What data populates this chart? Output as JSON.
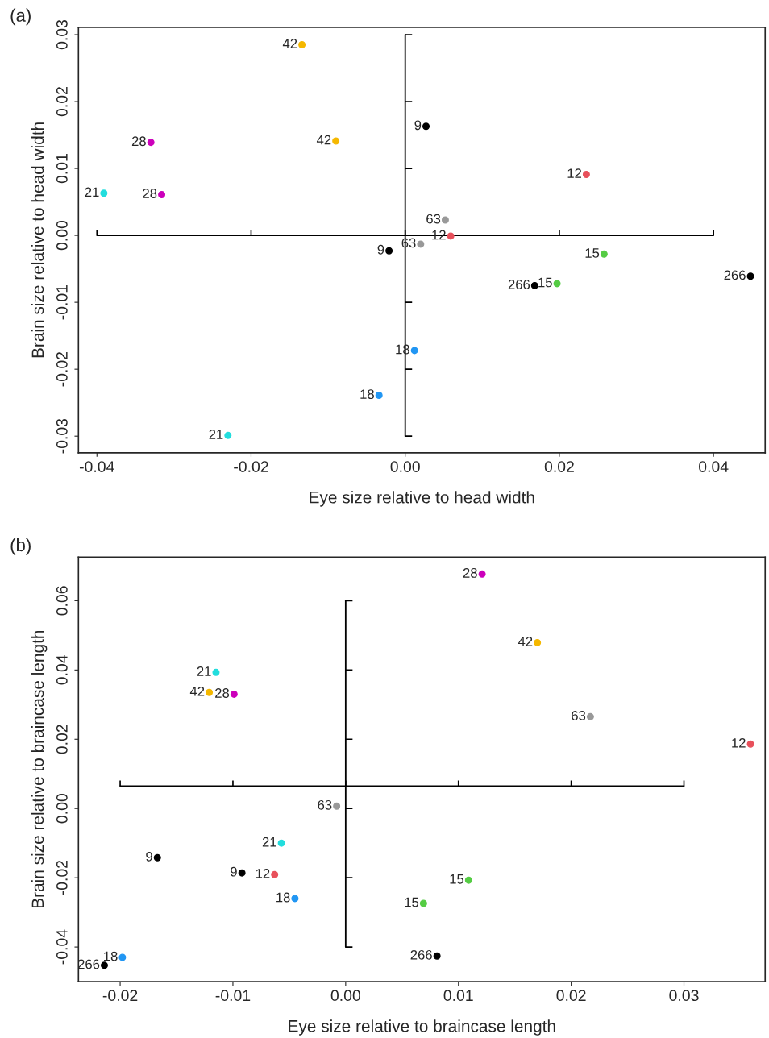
{
  "chart_data": [
    {
      "type": "scatter",
      "title": "(a)",
      "xlabel": "Eye size relative to head width",
      "ylabel": "Brain size relative to head width",
      "xlim": [
        -0.0424,
        0.0467
      ],
      "ylim": [
        -0.0325,
        0.0311
      ],
      "xticks": [
        {
          "value": -0.04,
          "label": "-0.04"
        },
        {
          "value": -0.02,
          "label": "-0.02"
        },
        {
          "value": 0.0,
          "label": "0.00"
        },
        {
          "value": 0.02,
          "label": "0.02"
        },
        {
          "value": 0.04,
          "label": "0.04"
        }
      ],
      "yticks": [
        {
          "value": -0.03,
          "label": "-0.03"
        },
        {
          "value": -0.02,
          "label": "-0.02"
        },
        {
          "value": -0.01,
          "label": "-0.01"
        },
        {
          "value": 0.0,
          "label": "0.00"
        },
        {
          "value": 0.01,
          "label": "0.01"
        },
        {
          "value": 0.02,
          "label": "0.02"
        },
        {
          "value": 0.03,
          "label": "0.03"
        }
      ],
      "ref_lines": [
        {
          "axis": "x",
          "value": 0.0
        },
        {
          "axis": "y",
          "value": 0.0
        }
      ],
      "grid": false,
      "marker": "circle",
      "series": [
        {
          "color": "#000000",
          "x": [
            0.0027,
            -0.0021
          ],
          "values": [
            0.0163,
            -0.0023
          ]
        },
        {
          "color": "#e8505b",
          "x": [
            0.0235,
            0.0059
          ],
          "values": [
            0.0091,
            -0.0001
          ]
        },
        {
          "color": "#55cc44",
          "x": [
            0.0258,
            0.0197
          ],
          "values": [
            -0.0028,
            -0.0072
          ]
        },
        {
          "color": "#2196f3",
          "x": [
            0.0012,
            -0.0034
          ],
          "values": [
            -0.0172,
            -0.0239
          ]
        },
        {
          "color": "#22dddd",
          "x": [
            -0.0391,
            -0.023
          ],
          "values": [
            0.0063,
            -0.0299
          ]
        },
        {
          "color": "#cc00bb",
          "x": [
            -0.033,
            -0.0316
          ],
          "values": [
            0.0139,
            0.0061
          ]
        },
        {
          "color": "#f5b800",
          "x": [
            -0.0134,
            -0.009
          ],
          "values": [
            0.0285,
            0.0141
          ]
        },
        {
          "color": "#999999",
          "x": [
            0.0052,
            0.002
          ],
          "values": [
            0.0023,
            -0.0013
          ]
        },
        {
          "color": "#000000",
          "x": [
            0.0168,
            0.0448
          ],
          "values": [
            -0.0075,
            -0.0061
          ]
        }
      ],
      "annotations": [
        {
          "text": "9",
          "x": 0.0027,
          "y": 0.0163
        },
        {
          "text": "9",
          "x": -0.0021,
          "y": -0.0023
        },
        {
          "text": "12",
          "x": 0.0235,
          "y": 0.0091
        },
        {
          "text": "12",
          "x": 0.0059,
          "y": -0.0001
        },
        {
          "text": "15",
          "x": 0.0258,
          "y": -0.0028
        },
        {
          "text": "15",
          "x": 0.0197,
          "y": -0.0072
        },
        {
          "text": "18",
          "x": 0.0012,
          "y": -0.0172
        },
        {
          "text": "18",
          "x": -0.0034,
          "y": -0.0239
        },
        {
          "text": "21",
          "x": -0.0391,
          "y": 0.0063
        },
        {
          "text": "21",
          "x": -0.023,
          "y": -0.0299
        },
        {
          "text": "28",
          "x": -0.033,
          "y": 0.0139
        },
        {
          "text": "28",
          "x": -0.0316,
          "y": 0.0061
        },
        {
          "text": "42",
          "x": -0.0134,
          "y": 0.0285
        },
        {
          "text": "42",
          "x": -0.009,
          "y": 0.0141
        },
        {
          "text": "63",
          "x": 0.0052,
          "y": 0.0023
        },
        {
          "text": "63",
          "x": 0.002,
          "y": -0.0013
        },
        {
          "text": "266",
          "x": 0.0168,
          "y": -0.0075
        },
        {
          "text": "266",
          "x": 0.0448,
          "y": -0.0061
        }
      ]
    },
    {
      "type": "scatter",
      "title": "(b)",
      "xlabel": "Eye size relative to braincase length",
      "ylabel": "Brain size relative to braincase length",
      "xlim": [
        -0.0237,
        0.0372
      ],
      "ylim": [
        -0.05,
        0.0726
      ],
      "xticks": [
        {
          "value": -0.02,
          "label": "-0.02"
        },
        {
          "value": -0.01,
          "label": "-0.01"
        },
        {
          "value": 0.0,
          "label": "0.00"
        },
        {
          "value": 0.01,
          "label": "0.01"
        },
        {
          "value": 0.02,
          "label": "0.02"
        },
        {
          "value": 0.03,
          "label": "0.03"
        }
      ],
      "yticks": [
        {
          "value": -0.04,
          "label": "-0.04"
        },
        {
          "value": -0.02,
          "label": "-0.02"
        },
        {
          "value": 0.0,
          "label": "0.00"
        },
        {
          "value": 0.02,
          "label": "0.02"
        },
        {
          "value": 0.04,
          "label": "0.04"
        },
        {
          "value": 0.06,
          "label": "0.06"
        }
      ],
      "ref_lines": [
        {
          "axis": "x",
          "value": 0.0
        },
        {
          "axis": "y",
          "value": 0.0065
        }
      ],
      "grid": false,
      "marker": "circle",
      "series": [
        {
          "color": "#000000",
          "x": [
            -0.0167,
            -0.0092
          ],
          "values": [
            -0.0142,
            -0.0186
          ]
        },
        {
          "color": "#e8505b",
          "x": [
            0.0359,
            -0.0063
          ],
          "values": [
            0.0186,
            -0.0191
          ]
        },
        {
          "color": "#55cc44",
          "x": [
            0.0109,
            0.0069
          ],
          "values": [
            -0.0207,
            -0.0274
          ]
        },
        {
          "color": "#2196f3",
          "x": [
            -0.0045,
            -0.0198
          ],
          "values": [
            -0.026,
            -0.043
          ]
        },
        {
          "color": "#22dddd",
          "x": [
            -0.0115,
            -0.0057
          ],
          "values": [
            0.0393,
            -0.01
          ]
        },
        {
          "color": "#cc00bb",
          "x": [
            0.0121,
            -0.0099
          ],
          "values": [
            0.0677,
            0.033
          ]
        },
        {
          "color": "#f5b800",
          "x": [
            0.017,
            -0.0121
          ],
          "values": [
            0.0479,
            0.0335
          ]
        },
        {
          "color": "#999999",
          "x": [
            0.0217,
            -0.0008
          ],
          "values": [
            0.0265,
            0.0007
          ]
        },
        {
          "color": "#000000",
          "x": [
            0.0081,
            -0.0214
          ],
          "values": [
            -0.0426,
            -0.0453
          ]
        }
      ],
      "annotations": [
        {
          "text": "9",
          "x": -0.0167,
          "y": -0.0142
        },
        {
          "text": "9",
          "x": -0.0092,
          "y": -0.0186
        },
        {
          "text": "12",
          "x": 0.0359,
          "y": 0.0186
        },
        {
          "text": "12",
          "x": -0.0063,
          "y": -0.0191
        },
        {
          "text": "15",
          "x": 0.0109,
          "y": -0.0207
        },
        {
          "text": "15",
          "x": 0.0069,
          "y": -0.0274
        },
        {
          "text": "18",
          "x": -0.0045,
          "y": -0.026
        },
        {
          "text": "18",
          "x": -0.0198,
          "y": -0.043
        },
        {
          "text": "21",
          "x": -0.0115,
          "y": 0.0393
        },
        {
          "text": "21",
          "x": -0.0057,
          "y": -0.01
        },
        {
          "text": "28",
          "x": 0.0121,
          "y": 0.0677
        },
        {
          "text": "28",
          "x": -0.0099,
          "y": 0.033
        },
        {
          "text": "42",
          "x": 0.017,
          "y": 0.0479
        },
        {
          "text": "42",
          "x": -0.0121,
          "y": 0.0335
        },
        {
          "text": "63",
          "x": 0.0217,
          "y": 0.0265
        },
        {
          "text": "63",
          "x": -0.0008,
          "y": 0.0007
        },
        {
          "text": "266",
          "x": 0.0081,
          "y": -0.0426
        },
        {
          "text": "266",
          "x": -0.0214,
          "y": -0.0453
        }
      ]
    }
  ]
}
